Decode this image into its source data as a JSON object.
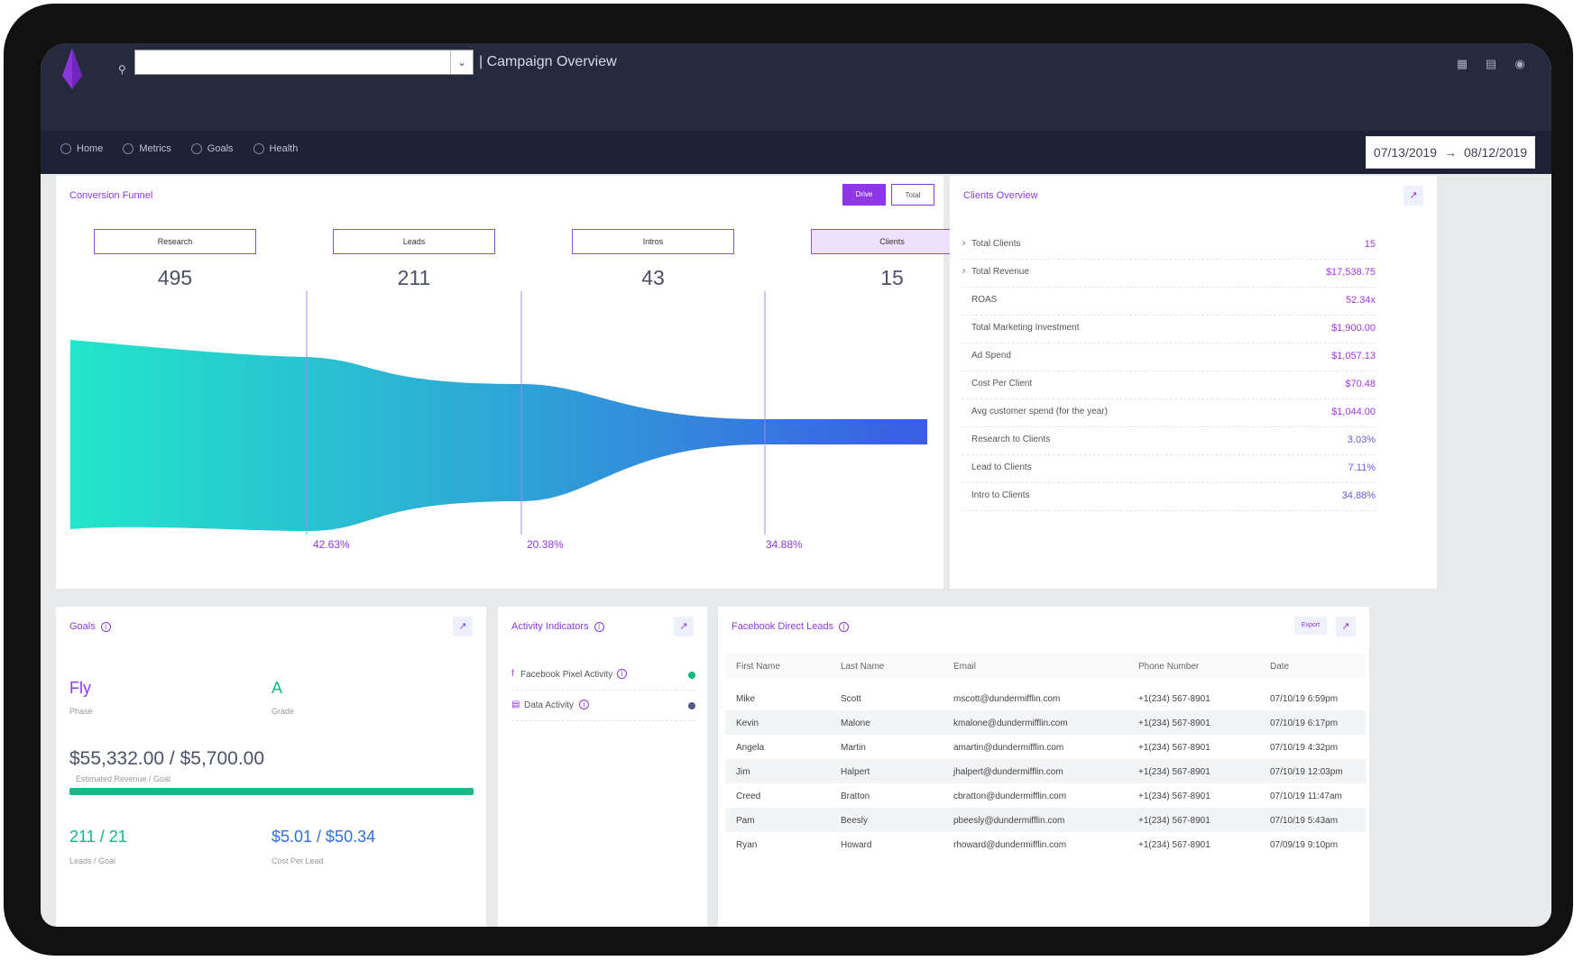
{
  "header": {
    "page_title": "| Campaign Overview",
    "search_value": "",
    "icons": [
      "dashboard-icon",
      "clipboard-icon",
      "user-icon"
    ]
  },
  "nav": [
    {
      "label": "Home",
      "icon": "home-icon"
    },
    {
      "label": "Metrics",
      "icon": "metrics-icon"
    },
    {
      "label": "Goals",
      "icon": "goals-icon"
    },
    {
      "label": "Health",
      "icon": "health-icon"
    }
  ],
  "date_range": {
    "start": "07/13/2019",
    "arrow": "→",
    "end": "08/12/2019"
  },
  "conversion": {
    "title": "Conversion Funnel",
    "toggle_drive": "Drive",
    "toggle_total": "Total",
    "stages": [
      {
        "label": "Research",
        "count": "495"
      },
      {
        "label": "Leads",
        "count": "211"
      },
      {
        "label": "Intros",
        "count": "43"
      },
      {
        "label": "Clients",
        "count": "15"
      }
    ],
    "percentages": [
      "42.63%",
      "20.38%",
      "34.88%"
    ]
  },
  "clients": {
    "title": "Clients Overview",
    "rows": [
      {
        "label": "Total Clients",
        "value": "15"
      },
      {
        "label": "Total Revenue",
        "value": "$17,538.75"
      },
      {
        "label": "ROAS",
        "value": "52.34x"
      },
      {
        "label": "Total Marketing Investment",
        "value": "$1,900.00"
      },
      {
        "label": "Ad Spend",
        "value": "$1,057.13"
      },
      {
        "label": "Cost Per Client",
        "value": "$70.48"
      },
      {
        "label": "Avg customer spend (for the year)",
        "value": "$1,044.00"
      },
      {
        "label": "Research to Clients",
        "value": "3.03%"
      },
      {
        "label": "Lead to Clients",
        "value": "7.11%"
      },
      {
        "label": "Intro to Clients",
        "value": "34.88%"
      }
    ]
  },
  "goals": {
    "title": "Goals",
    "phase": "Fly",
    "phase_label": "Phase",
    "grade": "A",
    "grade_label": "Grade",
    "revenue": "$55,332.00 / $5,700.00",
    "revenue_label": "Estimated Revenue / Goal",
    "leads": "211 / 21",
    "leads_label": "Leads / Goal",
    "cpl": "$5.01 / $50.34",
    "cpl_label": "Cost Per Lead"
  },
  "activity": {
    "title": "Activity Indicators",
    "rows": [
      {
        "label": "Facebook Pixel Activity"
      },
      {
        "label": "Data Activity"
      }
    ]
  },
  "leads_table": {
    "title": "Facebook Direct Leads",
    "export_label": "Export",
    "headers": [
      "First Name",
      "Last Name",
      "Email",
      "Phone Number",
      "Date"
    ],
    "rows": [
      [
        "Mike",
        "Scott",
        "mscott@dundermifflin.com",
        "+1(234) 567-8901",
        "07/10/19 6:59pm"
      ],
      [
        "Kevin",
        "Malone",
        "kmalone@dundermifflin.com",
        "+1(234) 567-8901",
        "07/10/19 6:17pm"
      ],
      [
        "Angela",
        "Martin",
        "amartin@dundermifflin.com",
        "+1(234) 567-8901",
        "07/10/19 4:32pm"
      ],
      [
        "Jim",
        "Halpert",
        "jhalpert@dundermifflin.com",
        "+1(234) 567-8901",
        "07/10/19 12:03pm"
      ],
      [
        "Creed",
        "Bratton",
        "cbratton@dundermifflin.com",
        "+1(234) 567-8901",
        "07/10/19 11:47am"
      ],
      [
        "Pam",
        "Beesly",
        "pbeesly@dundermifflin.com",
        "+1(234) 567-8901",
        "07/10/19 5:43am"
      ],
      [
        "Ryan",
        "Howard",
        "rhoward@dundermifflin.com",
        "+1(234) 567-8901",
        "07/09/19 9:10pm"
      ]
    ]
  },
  "colors": {
    "accent": "#8f37e6",
    "green": "#10b981",
    "blue": "#2d6fe0"
  }
}
